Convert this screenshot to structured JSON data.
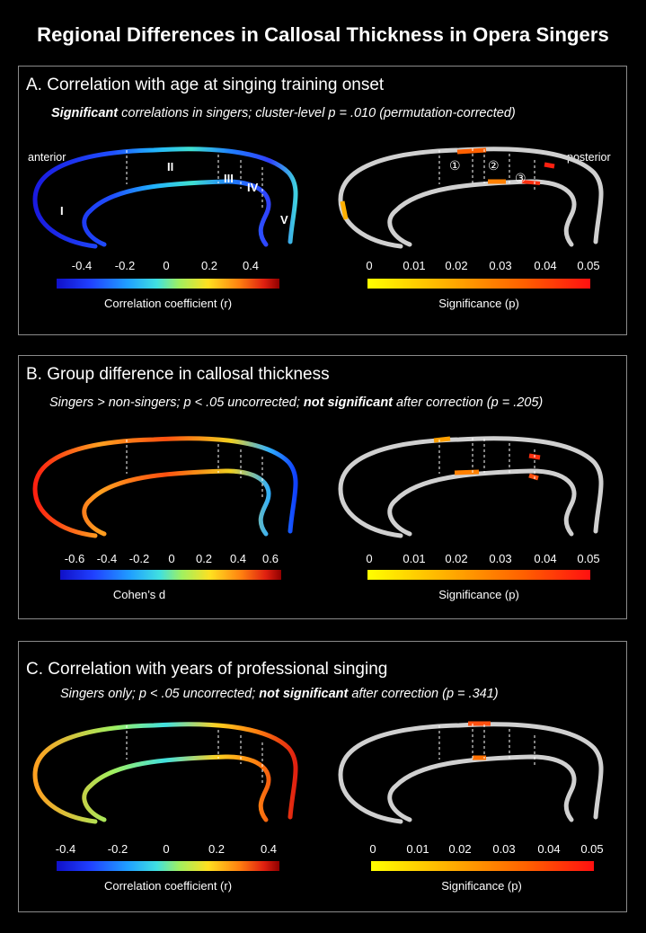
{
  "title": "Regional Differences in Callosal Thickness in Opera Singers",
  "colors": {
    "jet": [
      "#1010c8",
      "#2040ff",
      "#20a0ff",
      "#40e0e0",
      "#a0f060",
      "#ffe020",
      "#ff8010",
      "#e02010",
      "#900000"
    ],
    "sig": [
      "#ffff00",
      "#ffb000",
      "#ff6000",
      "#ff1010"
    ],
    "inactive": "#d0d0d0",
    "border": "#8a8a8a"
  },
  "panels": {
    "a": {
      "heading": "A.  Correlation with age at singing training onset",
      "sub_bold": "Significant",
      "sub_rest": " correlations in singers; cluster-level p = .010 (permutation-corrected)",
      "left_label": "anterior",
      "right_label": "posterior",
      "regions": [
        "I",
        "II",
        "III",
        "IV",
        "V"
      ],
      "clusters": [
        "①",
        "②",
        "③"
      ],
      "left_scale": {
        "ticks": [
          "-0.4",
          "-0.2",
          "0",
          "0.2",
          "0.4"
        ],
        "name": "Correlation coefficient (r)"
      },
      "right_scale": {
        "ticks": [
          "0",
          "0.01",
          "0.02",
          "0.03",
          "0.04",
          "0.05"
        ],
        "name": "Significance (p)"
      }
    },
    "b": {
      "heading": "B.  Group difference in callosal thickness",
      "sub_a": "Singers > non-singers; p < .05 uncorrected; ",
      "sub_bold": "not significant",
      "sub_b": " after correction (p = .205)",
      "left_scale": {
        "ticks": [
          "-0.6",
          "-0.4",
          "-0.2",
          "0",
          "0.2",
          "0.4",
          "0.6"
        ],
        "name": "Cohen’s d"
      },
      "right_scale": {
        "ticks": [
          "0",
          "0.01",
          "0.02",
          "0.03",
          "0.04",
          "0.05"
        ],
        "name": "Significance (p)"
      }
    },
    "c": {
      "heading": "C.  Correlation with years of professional singing",
      "sub_a": "Singers only; p < .05 uncorrected; ",
      "sub_bold": "not significant",
      "sub_b": " after correction (p = .341)",
      "left_scale": {
        "ticks": [
          "-0.4",
          "-0.2",
          "0",
          "0.2",
          "0.4"
        ],
        "name": "Correlation coefficient (r)"
      },
      "right_scale": {
        "ticks": [
          "0",
          "0.01",
          "0.02",
          "0.03",
          "0.04",
          "0.05"
        ],
        "name": "Significance (p)"
      }
    }
  }
}
